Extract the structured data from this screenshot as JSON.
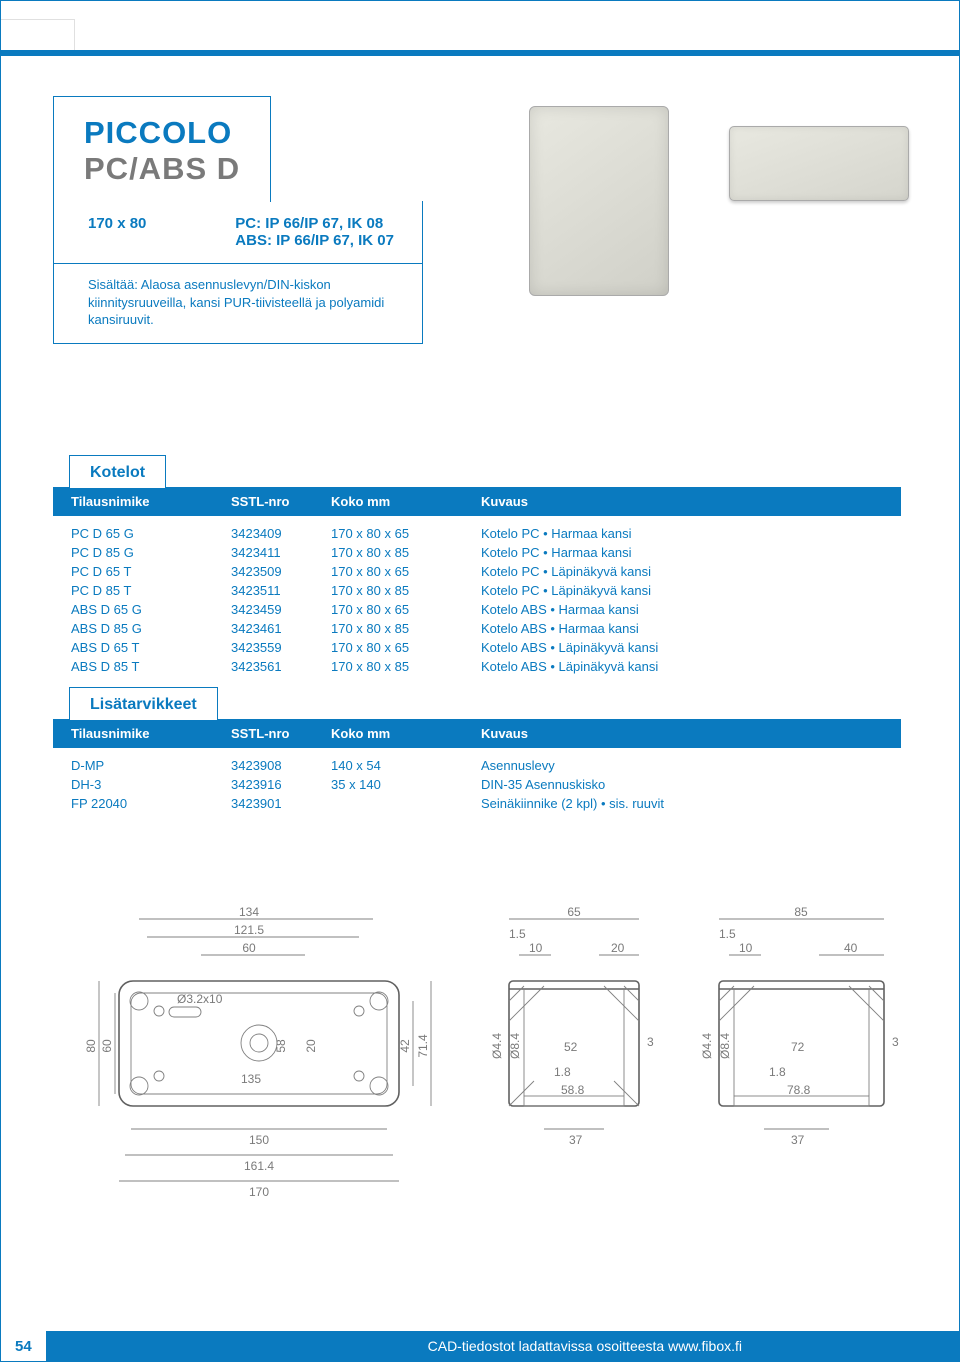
{
  "theme": {
    "primary": "#0a7abf",
    "muted": "#7a7a7a",
    "text_size_body": 13
  },
  "title": {
    "line1": "PICCOLO",
    "line2": "PC/ABS D"
  },
  "rating": {
    "dim": "170 x 80",
    "pc_line": "PC: IP 66/IP 67, IK 08",
    "abs_line": "ABS: IP 66/IP 67, IK 07"
  },
  "description": "Sisältää: Alaosa asennuslevyn/DIN-kiskon kiinnitysruuveilla, kansi PUR-tiivisteellä ja polyamidi kansiruuvit.",
  "section1": {
    "tab": "Kotelot",
    "headers": [
      "Tilausnimike",
      "SSTL-nro",
      "Koko mm",
      "Kuvaus"
    ],
    "rows": [
      [
        "PC D 65 G",
        "3423409",
        "170 x 80 x 65",
        "Kotelo PC • Harmaa kansi"
      ],
      [
        "PC D 85 G",
        "3423411",
        "170 x 80 x 85",
        "Kotelo PC • Harmaa kansi"
      ],
      [
        "PC D 65 T",
        "3423509",
        "170 x 80 x 65",
        "Kotelo PC • Läpinäkyvä kansi"
      ],
      [
        "PC D 85 T",
        "3423511",
        "170 x 80 x 85",
        "Kotelo PC • Läpinäkyvä kansi"
      ],
      [
        "ABS D 65 G",
        "3423459",
        "170 x 80 x 65",
        "Kotelo ABS • Harmaa kansi"
      ],
      [
        "ABS D 85 G",
        "3423461",
        "170 x 80 x 85",
        "Kotelo ABS • Harmaa kansi"
      ],
      [
        "ABS D 65 T",
        "3423559",
        "170 x 80 x 65",
        "Kotelo ABS • Läpinäkyvä kansi"
      ],
      [
        "ABS D 85 T",
        "3423561",
        "170 x 80 x 85",
        "Kotelo ABS • Läpinäkyvä kansi"
      ]
    ]
  },
  "section2": {
    "tab": "Lisätarvikkeet",
    "headers": [
      "Tilausnimike",
      "SSTL-nro",
      "Koko mm",
      "Kuvaus"
    ],
    "rows": [
      [
        "D-MP",
        "3423908",
        "140 x 54",
        "Asennuslevy"
      ],
      [
        "DH-3",
        "3423916",
        "35 x 140",
        "DIN-35 Asennuskisko"
      ],
      [
        "FP 22040",
        "3423901",
        "",
        "Seinäkiinnike (2 kpl) • sis. ruuvit"
      ]
    ]
  },
  "drawings": {
    "stroke_thin": "#808080",
    "stroke_thick": "#606060",
    "label_color": "#7a7a7a",
    "top": {
      "overall_w": "170",
      "overall_h": "80",
      "dims": {
        "d134": "134",
        "d1215": "121.5",
        "d60": "60",
        "d80": "80",
        "d60v": "60",
        "d58": "58",
        "d20": "20",
        "d42": "42",
        "d714": "71.4",
        "d150": "150",
        "d1614": "161.4",
        "d170": "170",
        "d135": "135",
        "d32": "Ø3.2x10"
      }
    },
    "side65": {
      "d65": "65",
      "d15": "1.5",
      "d10": "10",
      "d20": "20",
      "d44": "Ø4.4",
      "d84": "Ø8.4",
      "d52": "52",
      "d3": "3",
      "d18": "1.8",
      "d588": "58.8",
      "d37": "37"
    },
    "side85": {
      "d85": "85",
      "d15": "1.5",
      "d10": "10",
      "d40": "40",
      "d44": "Ø4.4",
      "d84": "Ø8.4",
      "d72": "72",
      "d3": "3",
      "d18": "1.8",
      "d788": "78.8",
      "d37": "37"
    }
  },
  "footer": {
    "page": "54",
    "text": "CAD-tiedostot ladattavissa osoitteesta www.fibox.fi"
  }
}
